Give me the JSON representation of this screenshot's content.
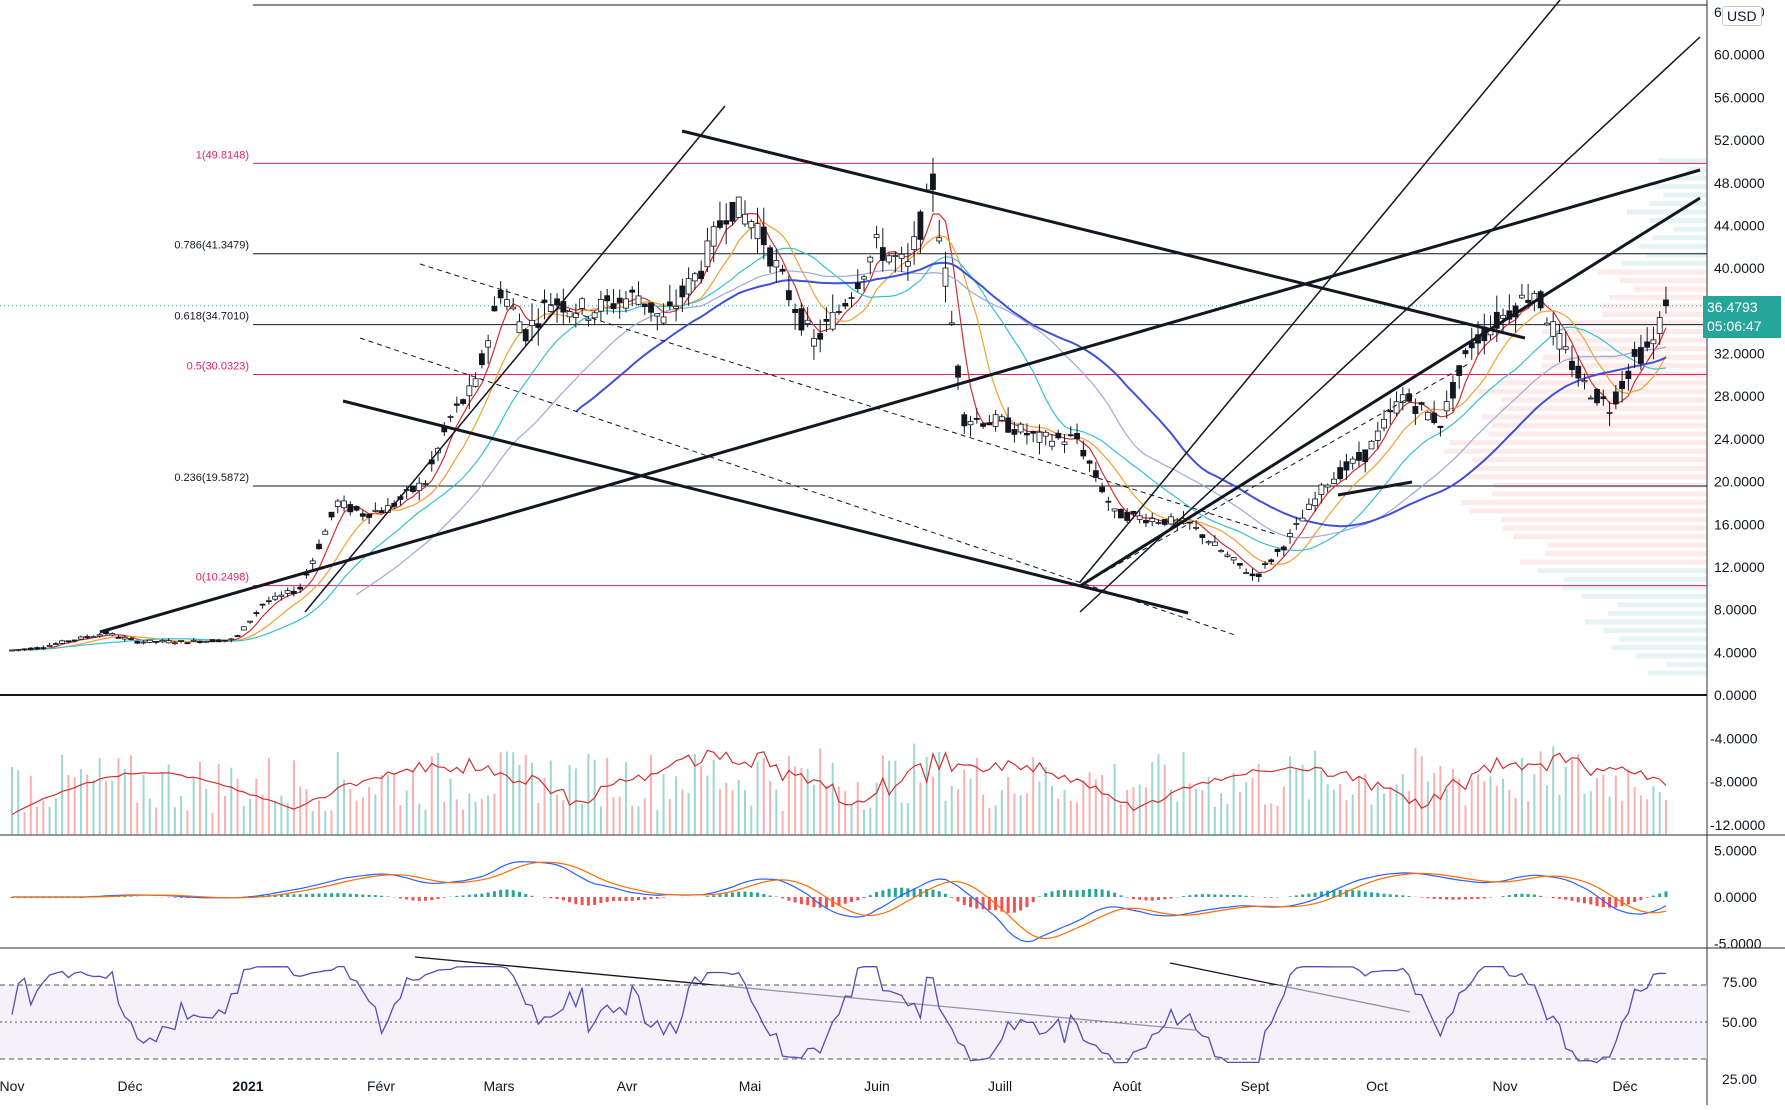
{
  "currency": "USD",
  "current_price": "36.4793",
  "countdown": "05:06:47",
  "colors": {
    "up": "#26a69a",
    "down": "#ef5350",
    "fib_pink": "#e91e63",
    "fib_black": "#131722",
    "ma_red": "#d32f2f",
    "ma_orange": "#f0a030",
    "ma_teal": "#38c0d0",
    "ma_blue": "#3f51d9",
    "ma_lav": "#9fa8da",
    "rsi_line": "#5b4ab5",
    "price_badge": "#26a69a"
  },
  "price_axis": {
    "ticks": [
      "64.0000",
      "60.0000",
      "56.0000",
      "52.0000",
      "48.0000",
      "44.0000",
      "40.0000",
      "36.0000",
      "32.0000",
      "28.0000",
      "24.0000",
      "20.0000",
      "16.0000",
      "12.0000",
      "8.0000",
      "4.0000",
      "0.0000"
    ],
    "min": 0,
    "max": 64
  },
  "volume_axis": {
    "ticks": [
      "-4.0000",
      "-8.0000",
      "-12.0000"
    ],
    "min": -12,
    "max": 0
  },
  "macd_axis": {
    "ticks": [
      "5.0000",
      "0.0000",
      "-5.0000"
    ],
    "min": -5,
    "max": 5
  },
  "rsi_axis": {
    "ticks": [
      "75.00",
      "50.00",
      "25.00"
    ],
    "min": 25,
    "max": 75
  },
  "time_axis": [
    "Nov",
    "Déc",
    "2021",
    "Févr",
    "Mars",
    "Avr",
    "Mai",
    "Juin",
    "Juill",
    "Août",
    "Sept",
    "Oct",
    "Nov",
    "Déc"
  ],
  "fib_levels": [
    {
      "label": "1(49.8148)",
      "value": 49.8148,
      "color": "#e91e63"
    },
    {
      "label": "0.786(41.3479)",
      "value": 41.3479,
      "color": "#131722"
    },
    {
      "label": "0.618(34.7010)",
      "value": 34.701,
      "color": "#131722"
    },
    {
      "label": "0.5(30.0323)",
      "value": 30.0323,
      "color": "#e91e63"
    },
    {
      "label": "0.236(19.5872)",
      "value": 19.5872,
      "color": "#131722"
    },
    {
      "label": "0(10.2498)",
      "value": 10.2498,
      "color": "#e91e63"
    }
  ],
  "chart_data": {
    "type": "candlestick",
    "title": "",
    "x": [
      "Nov",
      "Déc",
      "2021",
      "Févr",
      "Mars",
      "Avr",
      "Mai",
      "Juin",
      "Juill",
      "Août",
      "Sept",
      "Oct"
    ],
    "close_monthly_approx": [
      4.2,
      5.0,
      9.5,
      18.0,
      30.0,
      42.0,
      36.0,
      24.0,
      14.0,
      20.0,
      32.0,
      36.4793
    ],
    "ylim": [
      0,
      64
    ],
    "last_close": 36.4793,
    "fibonacci": [
      49.8148,
      41.3479,
      34.701,
      30.0323,
      19.5872,
      10.2498
    ],
    "macd_range": [
      -5,
      5
    ],
    "rsi_range": [
      25,
      75
    ],
    "rsi_levels": [
      70,
      50,
      30
    ]
  }
}
